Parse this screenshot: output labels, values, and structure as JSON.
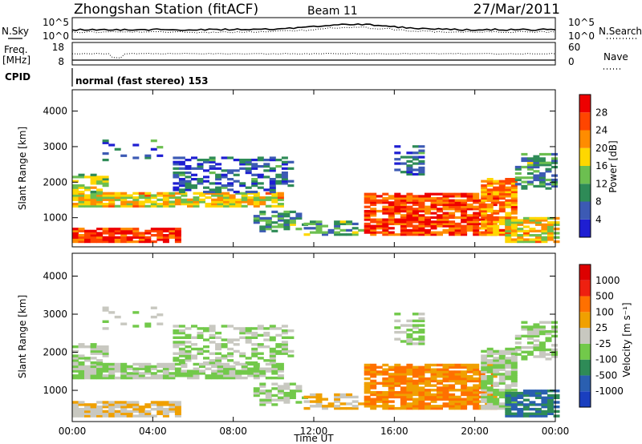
{
  "header": {
    "station": "Zhongshan Station (fitACF)",
    "beam": "Beam 11",
    "date": "27/Mar/2011"
  },
  "summary_panels": {
    "nsky": {
      "left_label": "N.Sky",
      "right_label": "N.Search",
      "left_ticks": [
        "10^5",
        "10^0"
      ],
      "right_ticks": [
        "10^5",
        "10^0"
      ]
    },
    "freq": {
      "left_label_line1": "Freq.",
      "left_label_line2": "[MHz]",
      "right_label": "Nave",
      "left_ticks": [
        "18",
        "8"
      ],
      "right_ticks": [
        "60",
        "0"
      ]
    },
    "cpid": {
      "label": "CPID",
      "mode_text": "normal (fast stereo) 153"
    }
  },
  "chart_data": [
    {
      "type": "heatmap",
      "name": "power",
      "ylabel": "Slant Range [km]",
      "xlabel": "Time UT",
      "xlim": [
        "00:00",
        "24:00"
      ],
      "ylim": [
        180,
        4600
      ],
      "yticks": [
        1000,
        2000,
        3000,
        4000
      ],
      "xticks": [
        "00:00",
        "04:00",
        "08:00",
        "12:00",
        "16:00",
        "20:00",
        "00:00"
      ],
      "colorbar": {
        "label": "Power [dB]",
        "ticks": [
          "4",
          "8",
          "12",
          "16",
          "20",
          "24",
          "28"
        ],
        "colors": [
          "#1e1ed2",
          "#3c5ab4",
          "#2e8b57",
          "#6cbf50",
          "#ffd700",
          "#ff8c00",
          "#ff4500",
          "#ee0000"
        ]
      }
    },
    {
      "type": "heatmap",
      "name": "velocity",
      "ylabel": "Slant Range [km]",
      "xlabel": "Time UT",
      "xlim": [
        "00:00",
        "24:00"
      ],
      "ylim": [
        180,
        4600
      ],
      "yticks": [
        1000,
        2000,
        3000,
        4000
      ],
      "xticks": [
        "00:00",
        "04:00",
        "08:00",
        "12:00",
        "16:00",
        "20:00",
        "00:00"
      ],
      "colorbar": {
        "label": "Velocity [m s⁻¹]",
        "ticks": [
          "1000",
          "500",
          "100",
          "25",
          "-25",
          "-100",
          "-500",
          "-1000"
        ],
        "colors": [
          "#1a3fbf",
          "#2a5fb0",
          "#2e8b57",
          "#72c94a",
          "#c8c8c0",
          "#f0a000",
          "#ff7000",
          "#ee2010",
          "#dd0000"
        ]
      }
    }
  ]
}
